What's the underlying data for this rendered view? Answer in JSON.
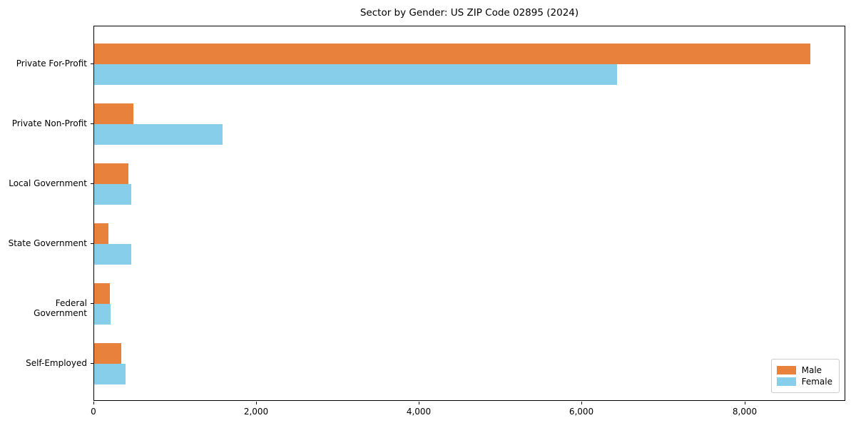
{
  "chart_data": {
    "type": "bar",
    "orientation": "horizontal",
    "title": "Sector by Gender: US ZIP Code 02895 (2024)",
    "categories": [
      "Private For-Profit",
      "Private Non-Profit",
      "Local Government",
      "State Government",
      "Federal Government",
      "Self-Employed"
    ],
    "series": [
      {
        "name": "Male",
        "color": "#e8813c",
        "values": [
          8800,
          480,
          420,
          175,
          190,
          335
        ]
      },
      {
        "name": "Female",
        "color": "#87ceeb",
        "values": [
          6430,
          1580,
          460,
          455,
          205,
          385
        ]
      }
    ],
    "xlim": [
      0,
      9240
    ],
    "xticks": [
      0,
      2000,
      4000,
      6000,
      8000
    ],
    "xtick_labels": [
      "0",
      "2,000",
      "4,000",
      "6,000",
      "8,000"
    ],
    "xlabel": "",
    "ylabel": "",
    "grid": false,
    "legend": {
      "position": "lower right",
      "entries": [
        "Male",
        "Female"
      ]
    },
    "colors": {
      "spine": "#000000",
      "background": "#ffffff",
      "legend_border": "#cccccc"
    }
  }
}
